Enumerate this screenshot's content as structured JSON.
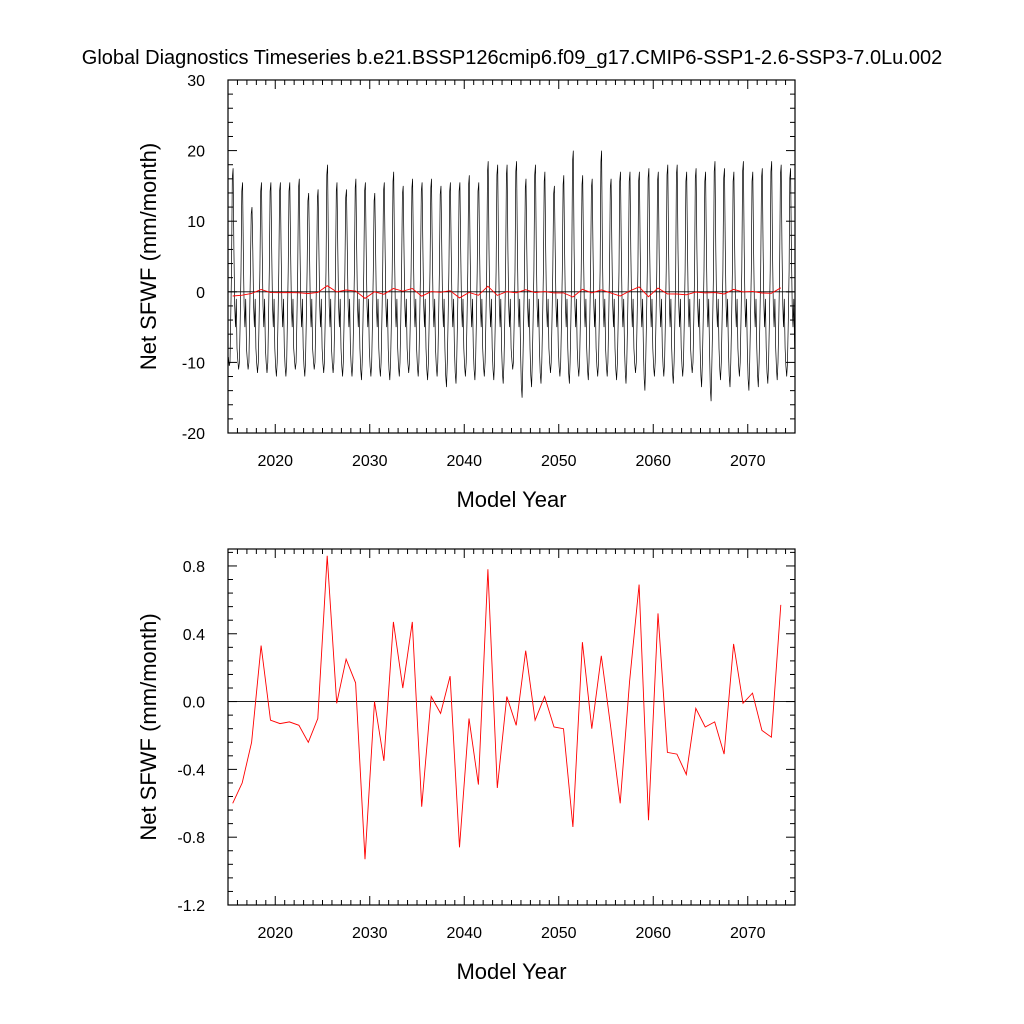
{
  "figure": {
    "title": "Global Diagnostics Timeseries b.e21.BSSP126cmip6.f09_g17.CMIP6-SSP1-2.6-SSP3-7.0Lu.002"
  },
  "chart_data": [
    {
      "type": "line",
      "xlabel": "Model Year",
      "ylabel": "Net SFWF (mm/month)",
      "xlim": [
        2015,
        2075
      ],
      "ylim": [
        -20,
        30
      ],
      "xticks": [
        2020,
        2030,
        2040,
        2050,
        2060,
        2070
      ],
      "yticks": [
        -20,
        -10,
        0,
        10,
        20,
        30
      ],
      "ytick_labels": [
        "-20",
        "-10",
        "0",
        "10",
        "20",
        "30"
      ],
      "reference_line": 0,
      "grid": false,
      "series": [
        {
          "color": "#000000",
          "description_monthly": true,
          "x_start": 2015.04,
          "step": 0.08333,
          "seasonal_mean": [
            -9.5,
            -11.0,
            -10.0,
            -4.0,
            3.0,
            15.0,
            16.0,
            6.0,
            -2.0,
            -5.0,
            -1.0,
            -8.0
          ],
          "yearly_max": [
            17.5,
            15.5,
            12.0,
            15.5,
            15.5,
            15.5,
            15.5,
            16.0,
            14.0,
            14.5,
            18.0,
            15.5,
            14.5,
            16.0,
            15.5,
            14.0,
            15.5,
            17.0,
            15.0,
            16.0,
            15.5,
            16.0,
            15.0,
            15.5,
            15.5,
            16.5,
            15.5,
            18.5,
            18.0,
            18.0,
            18.5,
            16.0,
            18.0,
            17.0,
            15.0,
            16.5,
            20.0,
            16.5,
            16.0,
            20.0,
            16.0,
            17.0,
            17.0,
            17.0,
            17.5,
            17.0,
            18.0,
            18.0,
            17.0,
            17.5,
            17.0,
            18.5,
            17.5,
            17.0,
            18.5,
            17.0,
            17.5,
            18.5,
            18.0,
            17.5
          ],
          "yearly_min": [
            -10.5,
            -11.0,
            -11.0,
            -11.5,
            -11.5,
            -12.0,
            -12.0,
            -11.0,
            -12.0,
            -11.0,
            -11.5,
            -11.5,
            -12.0,
            -12.0,
            -12.5,
            -12.0,
            -12.0,
            -12.5,
            -12.0,
            -11.5,
            -12.0,
            -12.5,
            -12.0,
            -13.5,
            -13.0,
            -12.0,
            -12.5,
            -12.0,
            -12.5,
            -13.0,
            -11.0,
            -15.0,
            -13.5,
            -13.0,
            -11.5,
            -12.0,
            -13.0,
            -12.0,
            -12.5,
            -12.0,
            -12.0,
            -12.5,
            -13.0,
            -11.5,
            -14.0,
            -12.0,
            -12.0,
            -13.0,
            -12.0,
            -11.5,
            -13.5,
            -15.5,
            -12.5,
            -13.5,
            -12.0,
            -14.0,
            -13.5,
            -13.0,
            -12.5,
            -12.0
          ]
        },
        {
          "color": "#ff0000",
          "description": "annual mean",
          "x": [
            2015.5,
            2016.5,
            2017.5,
            2018.5,
            2019.5,
            2020.5,
            2021.5,
            2022.5,
            2023.5,
            2024.5,
            2025.5,
            2026.5,
            2027.5,
            2028.5,
            2029.5,
            2030.5,
            2031.5,
            2032.5,
            2033.5,
            2034.5,
            2035.5,
            2036.5,
            2037.5,
            2038.5,
            2039.5,
            2040.5,
            2041.5,
            2042.5,
            2043.5,
            2044.5,
            2045.5,
            2046.5,
            2047.5,
            2048.5,
            2049.5,
            2050.5,
            2051.5,
            2052.5,
            2053.5,
            2054.5,
            2055.5,
            2056.5,
            2057.5,
            2058.5,
            2059.5,
            2060.5,
            2061.5,
            2062.5,
            2063.5,
            2064.5,
            2065.5,
            2066.5,
            2067.5,
            2068.5,
            2069.5,
            2070.5,
            2071.5,
            2072.5,
            2073.5
          ],
          "values": [
            -0.6,
            -0.48,
            -0.24,
            0.33,
            -0.11,
            -0.13,
            -0.12,
            -0.14,
            -0.24,
            -0.1,
            0.86,
            -0.01,
            0.25,
            0.11,
            -0.93,
            0.0,
            -0.35,
            0.47,
            0.08,
            0.47,
            -0.62,
            0.03,
            -0.07,
            0.15,
            -0.86,
            -0.1,
            -0.49,
            0.78,
            -0.51,
            0.03,
            -0.14,
            0.3,
            -0.11,
            0.03,
            -0.15,
            -0.16,
            -0.74,
            0.35,
            -0.16,
            0.27,
            -0.15,
            -0.6,
            0.12,
            0.69,
            -0.7,
            0.52,
            -0.3,
            -0.31,
            -0.43,
            -0.04,
            -0.15,
            -0.12,
            -0.31,
            0.34,
            -0.01,
            0.05,
            -0.17,
            -0.21,
            0.57
          ]
        }
      ]
    },
    {
      "type": "line",
      "xlabel": "Model Year",
      "ylabel": "Net SFWF (mm/month)",
      "xlim": [
        2015,
        2075
      ],
      "ylim": [
        -1.2,
        0.9
      ],
      "xticks": [
        2020,
        2030,
        2040,
        2050,
        2060,
        2070
      ],
      "yticks": [
        -1.2,
        -0.8,
        -0.4,
        0.0,
        0.4,
        0.8
      ],
      "ytick_labels": [
        "-1.2",
        "-0.8",
        "-0.4",
        "0.0",
        "0.4",
        "0.8"
      ],
      "reference_line": 0,
      "grid": false,
      "series": [
        {
          "color": "#ff0000",
          "x": [
            2015.5,
            2016.5,
            2017.5,
            2018.5,
            2019.5,
            2020.5,
            2021.5,
            2022.5,
            2023.5,
            2024.5,
            2025.5,
            2026.5,
            2027.5,
            2028.5,
            2029.5,
            2030.5,
            2031.5,
            2032.5,
            2033.5,
            2034.5,
            2035.5,
            2036.5,
            2037.5,
            2038.5,
            2039.5,
            2040.5,
            2041.5,
            2042.5,
            2043.5,
            2044.5,
            2045.5,
            2046.5,
            2047.5,
            2048.5,
            2049.5,
            2050.5,
            2051.5,
            2052.5,
            2053.5,
            2054.5,
            2055.5,
            2056.5,
            2057.5,
            2058.5,
            2059.5,
            2060.5,
            2061.5,
            2062.5,
            2063.5,
            2064.5,
            2065.5,
            2066.5,
            2067.5,
            2068.5,
            2069.5,
            2070.5,
            2071.5,
            2072.5,
            2073.5
          ],
          "values": [
            -0.6,
            -0.48,
            -0.24,
            0.33,
            -0.11,
            -0.13,
            -0.12,
            -0.14,
            -0.24,
            -0.1,
            0.86,
            -0.01,
            0.25,
            0.11,
            -0.93,
            0.0,
            -0.35,
            0.47,
            0.08,
            0.47,
            -0.62,
            0.03,
            -0.07,
            0.15,
            -0.86,
            -0.1,
            -0.49,
            0.78,
            -0.51,
            0.03,
            -0.14,
            0.3,
            -0.11,
            0.03,
            -0.15,
            -0.16,
            -0.74,
            0.35,
            -0.16,
            0.27,
            -0.15,
            -0.6,
            0.12,
            0.69,
            -0.7,
            0.52,
            -0.3,
            -0.31,
            -0.43,
            -0.04,
            -0.15,
            -0.12,
            -0.31,
            0.34,
            -0.01,
            0.05,
            -0.17,
            -0.21,
            0.57
          ]
        }
      ]
    }
  ]
}
